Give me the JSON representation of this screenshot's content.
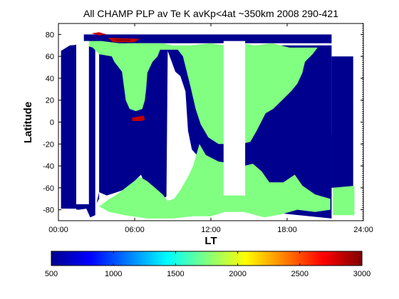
{
  "chart_data": [
    {
      "type": "heatmap",
      "title": "All CHAMP PLP av Te K avKp<4at ~350km 2008 290-421",
      "xlabel": "LT",
      "ylabel": "Latitude",
      "xlim": [
        0,
        24
      ],
      "ylim": [
        -90,
        90
      ],
      "x_tick_labels": [
        "00:00",
        "06:00",
        "12:00",
        "18:00",
        "24:00"
      ],
      "x_tick_values": [
        0,
        6,
        12,
        18,
        24
      ],
      "y_tick_values": [
        -80,
        -60,
        -40,
        -20,
        0,
        20,
        40,
        60,
        80
      ],
      "colors": {
        "te_500": "#00008f",
        "te_1900": "#80ff80",
        "te_2750": "#c00000",
        "te_3000": "#800000",
        "no_data": "#ffffff"
      },
      "regions": [
        {
          "value": 500,
          "points": [
            [
              0.2,
              65
            ],
            [
              0.9,
              70
            ],
            [
              2.4,
              72
            ],
            [
              2.9,
              70
            ],
            [
              2.9,
              -85
            ],
            [
              2.5,
              -87
            ],
            [
              2.2,
              -79
            ],
            [
              1.6,
              -80
            ],
            [
              0.7,
              -79
            ],
            [
              0.2,
              -79
            ]
          ]
        },
        {
          "value": 500,
          "points": [
            [
              3.2,
              73
            ],
            [
              4.9,
              74
            ],
            [
              5.9,
              70
            ],
            [
              7.6,
              70
            ],
            [
              9.4,
              68
            ],
            [
              12.5,
              70
            ],
            [
              13.4,
              70
            ],
            [
              14.2,
              68
            ],
            [
              15.6,
              67
            ],
            [
              16.0,
              67
            ],
            [
              16.4,
              70
            ],
            [
              17.6,
              70
            ],
            [
              21.5,
              70
            ],
            [
              21.5,
              -88
            ],
            [
              16.4,
              -82
            ],
            [
              15.9,
              -57
            ],
            [
              14.5,
              -59
            ],
            [
              13.5,
              -51
            ],
            [
              11.5,
              -38
            ],
            [
              10.5,
              -25
            ],
            [
              10.2,
              -8
            ],
            [
              10.0,
              28
            ],
            [
              9.6,
              42
            ],
            [
              9.2,
              46
            ],
            [
              8.6,
              65
            ],
            [
              8.5,
              -68
            ],
            [
              7.9,
              -72
            ],
            [
              7.0,
              -62
            ],
            [
              6.5,
              -48
            ],
            [
              5.7,
              -57
            ],
            [
              5.1,
              -62
            ],
            [
              4.6,
              -64
            ],
            [
              3.8,
              -67
            ],
            [
              3.2,
              -64
            ],
            [
              3.0,
              -74
            ],
            [
              3.2,
              -70
            ]
          ]
        },
        {
          "value": 500,
          "points": [
            [
              16.6,
              -58
            ],
            [
              17.4,
              -55
            ],
            [
              18.3,
              -50
            ],
            [
              19.4,
              -40
            ],
            [
              20.1,
              -30
            ],
            [
              20.8,
              -20
            ],
            [
              21.5,
              -10
            ],
            [
              21.5,
              -69
            ],
            [
              20.8,
              -70
            ],
            [
              20.1,
              -65
            ],
            [
              19.3,
              -62
            ],
            [
              18.2,
              -63
            ],
            [
              17.0,
              -62
            ]
          ]
        },
        {
          "value": 500,
          "points": [
            [
              21.5,
              60
            ],
            [
              23.2,
              60
            ],
            [
              23.2,
              -60
            ],
            [
              21.5,
              -60
            ]
          ]
        },
        {
          "value": 500,
          "points": [
            [
              2.0,
              80
            ],
            [
              21.5,
              80
            ],
            [
              21.5,
              72
            ],
            [
              2.0,
              72
            ]
          ]
        },
        {
          "value": 1900,
          "points": [
            [
              0.7,
              68
            ],
            [
              1.6,
              72
            ],
            [
              2.7,
              68
            ],
            [
              3.2,
              62
            ],
            [
              4.2,
              60
            ],
            [
              4.4,
              55
            ],
            [
              5.0,
              46
            ],
            [
              5.3,
              20
            ],
            [
              5.6,
              12
            ],
            [
              6.1,
              10
            ],
            [
              6.6,
              12
            ],
            [
              6.8,
              20
            ],
            [
              6.9,
              30
            ],
            [
              7.0,
              45
            ],
            [
              7.4,
              55
            ],
            [
              7.8,
              60
            ],
            [
              8.0,
              66
            ],
            [
              8.6,
              66
            ],
            [
              9.4,
              66
            ],
            [
              9.8,
              60
            ],
            [
              10.4,
              32
            ],
            [
              10.8,
              12
            ],
            [
              11.2,
              -2
            ],
            [
              11.8,
              -14
            ],
            [
              12.6,
              -20
            ],
            [
              13.4,
              -20
            ],
            [
              14.4,
              -20
            ],
            [
              15.1,
              -18
            ],
            [
              15.6,
              -8
            ],
            [
              16.3,
              8
            ],
            [
              16.9,
              12
            ],
            [
              17.6,
              20
            ],
            [
              18.3,
              28
            ],
            [
              18.8,
              35
            ],
            [
              19.2,
              45
            ],
            [
              19.4,
              55
            ],
            [
              20.0,
              62
            ],
            [
              20.4,
              68
            ],
            [
              18.2,
              68
            ],
            [
              16.8,
              72
            ],
            [
              15.5,
              70
            ],
            [
              14.4,
              72
            ],
            [
              13.0,
              70
            ],
            [
              12.0,
              72
            ],
            [
              10.4,
              70
            ],
            [
              9.0,
              70
            ],
            [
              8.2,
              72
            ],
            [
              6.4,
              72
            ],
            [
              4.8,
              72
            ],
            [
              3.4,
              74
            ],
            [
              2.2,
              74
            ]
          ]
        },
        {
          "value": 1900,
          "points": [
            [
              11.1,
              -20
            ],
            [
              11.6,
              -30
            ],
            [
              12.6,
              -36
            ],
            [
              13.8,
              -38
            ],
            [
              14.6,
              -40
            ],
            [
              15.3,
              -38
            ],
            [
              16.0,
              -45
            ],
            [
              16.6,
              -55
            ],
            [
              17.7,
              -55
            ],
            [
              18.6,
              -48
            ],
            [
              19.2,
              -58
            ],
            [
              20.2,
              -66
            ],
            [
              21.4,
              -70
            ],
            [
              21.4,
              -80
            ],
            [
              20.2,
              -82
            ],
            [
              18.8,
              -80
            ],
            [
              17.6,
              -84
            ],
            [
              16.2,
              -87
            ],
            [
              14.6,
              -82
            ],
            [
              13.1,
              -82
            ],
            [
              12.0,
              -86
            ],
            [
              10.6,
              -86
            ],
            [
              9.0,
              -88
            ],
            [
              7.0,
              -88
            ],
            [
              5.2,
              -85
            ],
            [
              4.0,
              -82
            ],
            [
              3.2,
              -77
            ],
            [
              3.9,
              -71
            ],
            [
              4.6,
              -66
            ],
            [
              5.5,
              -58
            ],
            [
              6.4,
              -50
            ],
            [
              7.0,
              -54
            ],
            [
              7.6,
              -60
            ],
            [
              8.2,
              -66
            ],
            [
              8.6,
              -72
            ],
            [
              9.1,
              -70
            ],
            [
              9.6,
              -62
            ],
            [
              10.2,
              -50
            ],
            [
              10.6,
              -40
            ]
          ]
        },
        {
          "value": 1900,
          "points": [
            [
              21.6,
              -60
            ],
            [
              23.4,
              -58
            ],
            [
              23.4,
              -85
            ],
            [
              21.6,
              -85
            ]
          ]
        },
        {
          "value": 2750,
          "points": [
            [
              5.8,
              4
            ],
            [
              6.7,
              6
            ],
            [
              6.8,
              2
            ],
            [
              6.5,
              1
            ],
            [
              5.8,
              1
            ]
          ]
        },
        {
          "value": 2750,
          "points": [
            [
              3.9,
              77
            ],
            [
              6.4,
              76
            ],
            [
              6.0,
              73
            ],
            [
              4.3,
              73
            ]
          ]
        },
        {
          "value": 3000,
          "points": [
            [
              4.4,
              75.5
            ],
            [
              5.8,
              75.3
            ],
            [
              5.6,
              74.2
            ],
            [
              4.6,
              74.2
            ]
          ]
        },
        {
          "value": 2750,
          "points": [
            [
              2.6,
              81
            ],
            [
              3.2,
              82
            ],
            [
              3.8,
              80
            ],
            [
              3.2,
              79
            ]
          ]
        },
        {
          "value": "no_data",
          "points": [
            [
              1.4,
              74
            ],
            [
              2.4,
              74
            ],
            [
              2.4,
              -75
            ],
            [
              1.4,
              -75
            ]
          ]
        },
        {
          "value": "no_data",
          "points": [
            [
              13.0,
              74
            ],
            [
              14.7,
              74
            ],
            [
              14.7,
              -67
            ],
            [
              13.0,
              -67
            ]
          ]
        },
        {
          "value": "no_data",
          "points": [
            [
              0.2,
              -79
            ],
            [
              1.4,
              -79
            ],
            [
              1.4,
              -90
            ],
            [
              0.2,
              -90
            ]
          ]
        },
        {
          "value": "no_data",
          "points": [
            [
              23.3,
              90
            ],
            [
              24,
              90
            ],
            [
              24,
              -90
            ],
            [
              23.3,
              -90
            ]
          ]
        }
      ]
    },
    {
      "type": "colorbar",
      "range": [
        500,
        3000
      ],
      "tick_values": [
        500,
        1000,
        1500,
        2000,
        2500,
        3000
      ],
      "colormap": "jet"
    }
  ]
}
